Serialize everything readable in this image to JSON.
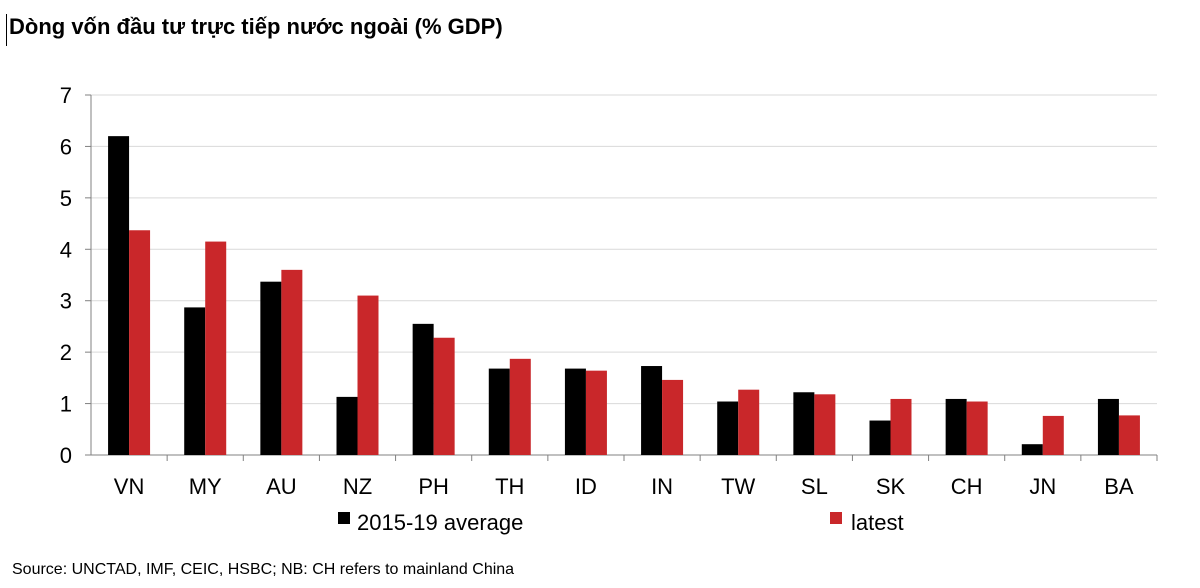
{
  "title": "Dòng vốn đầu tư trực tiếp nước ngoài (% GDP)",
  "source": "Source: UNCTAD, IMF, CEIC, HSBC; NB: CH refers to mainland China",
  "colors": {
    "avg": "#000000",
    "latest": "#c9272a",
    "grid": "#d9d9d9",
    "axis": "#808080"
  },
  "chart_data": {
    "type": "bar",
    "title": "Dòng vốn đầu tư trực tiếp nước ngoài (% GDP)",
    "xlabel": "",
    "ylabel": "",
    "ylim": [
      0,
      7
    ],
    "yticks": [
      "0",
      "1",
      "2",
      "3",
      "4",
      "5",
      "6",
      "7"
    ],
    "grid": true,
    "legend": "bottom",
    "categories": [
      "VN",
      "MY",
      "AU",
      "NZ",
      "PH",
      "TH",
      "ID",
      "IN",
      "TW",
      "SL",
      "SK",
      "CH",
      "JN",
      "BA"
    ],
    "series": [
      {
        "name": "2015-19 average",
        "values": [
          6.2,
          2.87,
          3.37,
          1.13,
          2.55,
          1.68,
          1.68,
          1.73,
          1.04,
          1.22,
          0.67,
          1.09,
          0.21,
          1.09
        ]
      },
      {
        "name": "latest",
        "values": [
          4.37,
          4.15,
          3.6,
          3.1,
          2.28,
          1.87,
          1.64,
          1.46,
          1.27,
          1.18,
          1.09,
          1.04,
          0.76,
          0.77
        ]
      }
    ]
  }
}
